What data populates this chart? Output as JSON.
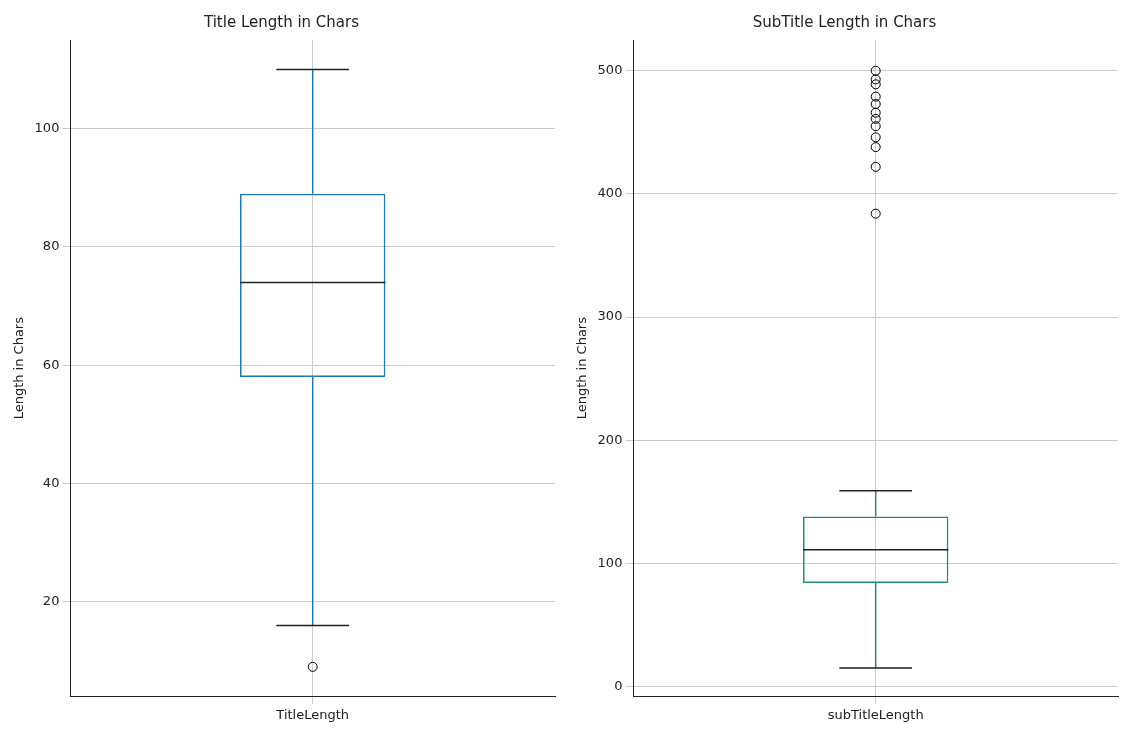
{
  "chart_data": [
    {
      "type": "box",
      "title": "Title Length in Chars",
      "ylabel": "Length in Chars",
      "categories": [
        "TitleLength"
      ],
      "color": "#1f77b4",
      "grid": true,
      "boxes": [
        {
          "low": 16,
          "q1": 58,
          "median": 74,
          "q3": 89,
          "high": 110,
          "outliers": [
            9
          ]
        }
      ],
      "ylim": [
        4,
        115
      ],
      "yticks": [
        20,
        40,
        60,
        80,
        100
      ]
    },
    {
      "type": "box",
      "title": "SubTitle Length in Chars",
      "ylabel": "Length in Chars",
      "categories": [
        "subTitleLength"
      ],
      "color": "#2a8a7a",
      "grid": true,
      "boxes": [
        {
          "low": 15,
          "q1": 84,
          "median": 111,
          "q3": 138,
          "high": 159,
          "outliers": [
            384,
            422,
            438,
            446,
            455,
            461,
            466,
            473,
            479,
            489,
            493,
            500
          ]
        }
      ],
      "ylim": [
        -8,
        525
      ],
      "yticks": [
        0,
        100,
        200,
        300,
        400,
        500
      ]
    }
  ]
}
